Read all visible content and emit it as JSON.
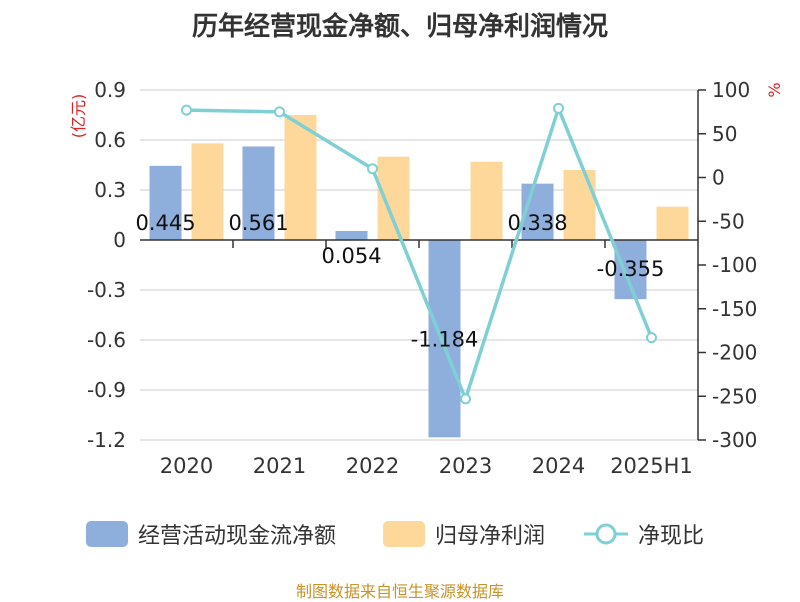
{
  "chart_data": {
    "type": "bar",
    "title": "历年经营现金净额、归母净利润情况",
    "categories": [
      "2020",
      "2021",
      "2022",
      "2023",
      "2024",
      "2025H1"
    ],
    "left_axis": {
      "unit_label": "(亿元)",
      "ylim": [
        -1.2,
        0.9
      ],
      "ticks": [
        "0.9",
        "0.6",
        "0.3",
        "0",
        "-0.3",
        "-0.6",
        "-0.9",
        "-1.2"
      ],
      "tick_values": [
        0.9,
        0.6,
        0.3,
        0,
        -0.3,
        -0.6,
        -0.9,
        -1.2
      ]
    },
    "right_axis": {
      "unit_label": "%",
      "ylim": [
        -300,
        100
      ],
      "ticks": [
        "100",
        "50",
        "0",
        "-50",
        "-100",
        "-150",
        "-200",
        "-250",
        "-300"
      ],
      "tick_values": [
        100,
        50,
        0,
        -50,
        -100,
        -150,
        -200,
        -250,
        -300
      ]
    },
    "series": [
      {
        "name": "经营活动现金流净额",
        "type": "bar",
        "axis": "left",
        "color": "#8eaedc",
        "values": [
          0.445,
          0.561,
          0.054,
          -1.184,
          0.338,
          -0.355
        ],
        "labels": [
          "0.445",
          "0.561",
          "0.054",
          "-1.184",
          "0.338",
          "-0.355"
        ]
      },
      {
        "name": "归母净利润",
        "type": "bar",
        "axis": "left",
        "color": "#fed89a",
        "values": [
          0.58,
          0.75,
          0.5,
          0.47,
          0.42,
          0.2
        ]
      },
      {
        "name": "净现比",
        "type": "line",
        "axis": "right",
        "color": "#7fd0d5",
        "values": [
          77,
          75,
          10,
          -253,
          79,
          -183
        ]
      }
    ],
    "grid": true,
    "legend": "bottom"
  },
  "source": "制图数据来自恒生聚源数据库"
}
